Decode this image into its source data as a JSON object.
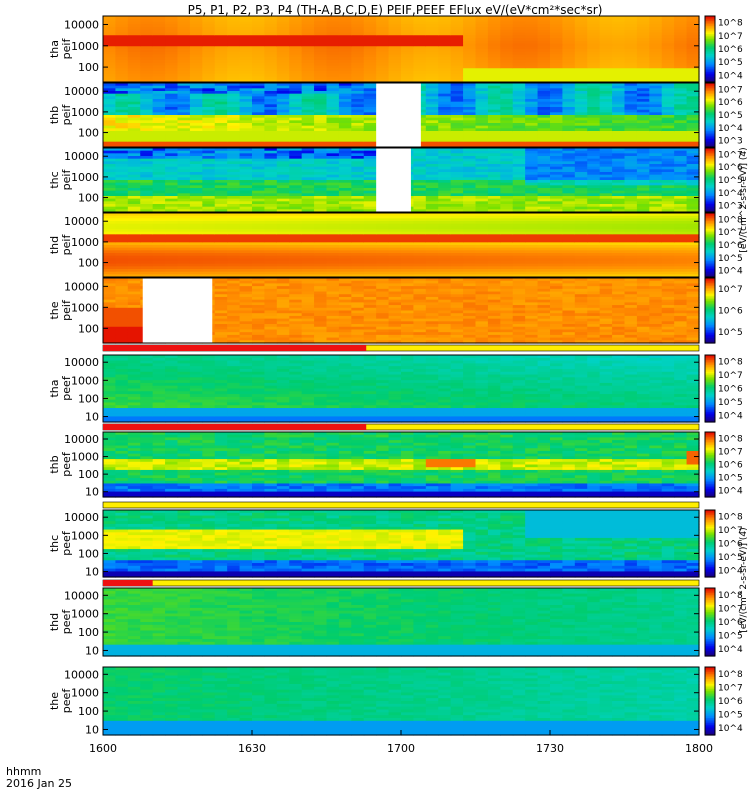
{
  "title": "P5, P1, P2, P3, P4 (TH-A,B,C,D,E) PEIF,PEEF EFlux eV/(eV*cm²*sec*sr)",
  "bottom_labels": {
    "time_format": "hhmm",
    "date": "2016 Jan 25"
  },
  "colors": {
    "flag_red": "#ee1111",
    "flag_yellow": "#ffee00",
    "frame": "#000000",
    "background": "#ffffff"
  },
  "colorbar_units": {
    "ion": "[eV/(cm^2-s-sr-eV)] (4)",
    "electron": "[eV/(cm^2-s-sr-eV)] (4)"
  },
  "chart_data": {
    "type": "heatmap",
    "x_axis": {
      "label": "hhmm",
      "range": [
        "16:00",
        "18:00"
      ],
      "ticks": [
        "1600",
        "1630",
        "1700",
        "1730",
        "1800"
      ]
    },
    "panels": [
      {
        "id": "tha_peif",
        "probe": "tha",
        "product": "peif",
        "ylabel": [
          "tha",
          "peif"
        ],
        "yscale": "log",
        "yrange": [
          20,
          25000
        ],
        "yticks": [
          "10000",
          "1000",
          "100"
        ],
        "colorbar": {
          "ticks": [
            "10^8",
            "10^7",
            "10^6",
            "10^5",
            "10^4"
          ],
          "range_log10": [
            3.5,
            8.5
          ]
        },
        "gaps": [],
        "flag": null
      },
      {
        "id": "thb_peif",
        "probe": "thb",
        "product": "peif",
        "ylabel": [
          "thb",
          "peif"
        ],
        "yscale": "log",
        "yrange": [
          20,
          25000
        ],
        "yticks": [
          "10000",
          "1000",
          "100"
        ],
        "colorbar": {
          "ticks": [
            "10^7",
            "10^6",
            "10^5",
            "10^4",
            "10^3"
          ],
          "range_log10": [
            2.5,
            7.5
          ]
        },
        "gaps": [
          {
            "start": "16:55",
            "end": "17:04"
          }
        ],
        "flag": null
      },
      {
        "id": "thc_peif",
        "probe": "thc",
        "product": "peif",
        "ylabel": [
          "thc",
          "peif"
        ],
        "yscale": "log",
        "yrange": [
          20,
          25000
        ],
        "yticks": [
          "10000",
          "1000",
          "100"
        ],
        "colorbar": {
          "ticks": [
            "10^7",
            "10^6",
            "10^5",
            "10^4",
            "10^3"
          ],
          "range_log10": [
            2.5,
            7.5
          ]
        },
        "gaps": [
          {
            "start": "16:55",
            "end": "17:02"
          }
        ],
        "flag": null
      },
      {
        "id": "thd_peif",
        "probe": "thd",
        "product": "peif",
        "ylabel": [
          "thd",
          "peif"
        ],
        "yscale": "log",
        "yrange": [
          20,
          25000
        ],
        "yticks": [
          "10000",
          "1000",
          "100"
        ],
        "colorbar": {
          "ticks": [
            "10^8",
            "10^7",
            "10^6",
            "10^5",
            "10^4"
          ],
          "range_log10": [
            3.5,
            8.5
          ]
        },
        "gaps": [],
        "flag": null
      },
      {
        "id": "the_peif",
        "probe": "the",
        "product": "peif",
        "ylabel": [
          "the",
          "peif"
        ],
        "yscale": "log",
        "yrange": [
          20,
          25000
        ],
        "yticks": [
          "10000",
          "1000",
          "100"
        ],
        "colorbar": {
          "ticks": [
            "10^7",
            "10^6",
            "10^5"
          ],
          "range_log10": [
            4.5,
            7.5
          ]
        },
        "gaps": [
          {
            "start": "16:08",
            "end": "16:22"
          }
        ],
        "flag": null
      },
      {
        "id": "tha_peef",
        "probe": "tha",
        "product": "peef",
        "ylabel": [
          "tha",
          "peef"
        ],
        "yscale": "log",
        "yrange": [
          5,
          25000
        ],
        "yticks": [
          "10000",
          "1000",
          "100",
          "10"
        ],
        "colorbar": {
          "ticks": [
            "10^8",
            "10^7",
            "10^6",
            "10^5",
            "10^4"
          ],
          "range_log10": [
            3.5,
            8.5
          ]
        },
        "gaps": [],
        "flag": {
          "red_until": "16:53"
        }
      },
      {
        "id": "thb_peef",
        "probe": "thb",
        "product": "peef",
        "ylabel": [
          "thb",
          "peef"
        ],
        "yscale": "log",
        "yrange": [
          5,
          25000
        ],
        "yticks": [
          "10000",
          "1000",
          "100",
          "10"
        ],
        "colorbar": {
          "ticks": [
            "10^8",
            "10^7",
            "10^6",
            "10^5",
            "10^4"
          ],
          "range_log10": [
            3.5,
            8.5
          ]
        },
        "gaps": [],
        "flag": {
          "red_until": "16:53"
        }
      },
      {
        "id": "thc_peef",
        "probe": "thc",
        "product": "peef",
        "ylabel": [
          "thc",
          "peef"
        ],
        "yscale": "log",
        "yrange": [
          5,
          25000
        ],
        "yticks": [
          "10000",
          "1000",
          "100",
          "10"
        ],
        "colorbar": {
          "ticks": [
            "10^8",
            "10^7",
            "10^6",
            "10^5",
            "10^4"
          ],
          "range_log10": [
            3.5,
            8.5
          ]
        },
        "gaps": [],
        "flag": {
          "red_until": "none"
        }
      },
      {
        "id": "thd_peef",
        "probe": "thd",
        "product": "peef",
        "ylabel": [
          "thd",
          "peef"
        ],
        "yscale": "log",
        "yrange": [
          5,
          25000
        ],
        "yticks": [
          "10000",
          "1000",
          "100",
          "10"
        ],
        "colorbar": {
          "ticks": [
            "10^8",
            "10^7",
            "10^6",
            "10^5",
            "10^4"
          ],
          "range_log10": [
            3.5,
            8.5
          ]
        },
        "gaps": [],
        "flag": {
          "red_until": "16:10"
        }
      },
      {
        "id": "the_peef",
        "probe": "the",
        "product": "peef",
        "ylabel": [
          "the",
          "peef"
        ],
        "yscale": "log",
        "yrange": [
          5,
          25000
        ],
        "yticks": [
          "10000",
          "1000",
          "100",
          "10"
        ],
        "colorbar": {
          "ticks": [
            "10^8",
            "10^7",
            "10^6",
            "10^5",
            "10^4"
          ],
          "range_log10": [
            3.5,
            8.5
          ]
        },
        "gaps": [],
        "flag": null
      }
    ]
  }
}
